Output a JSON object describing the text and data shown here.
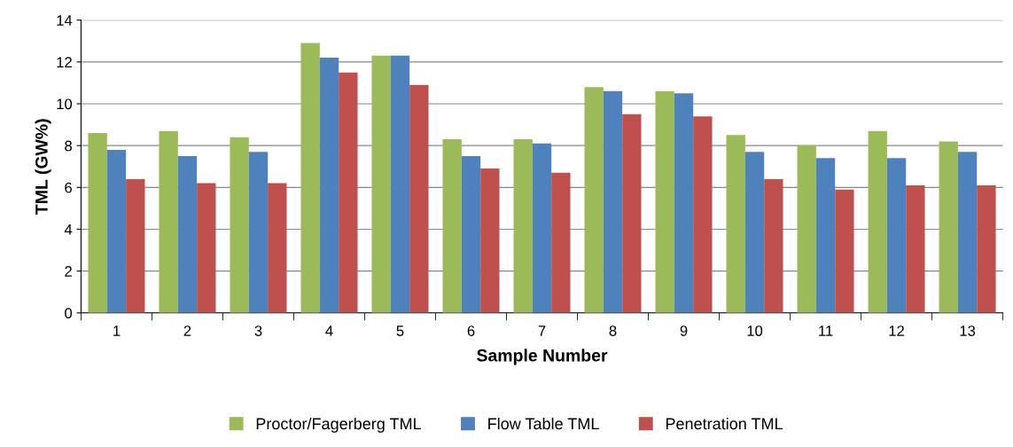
{
  "chart_data": {
    "type": "bar",
    "xlabel": "Sample Number",
    "ylabel": "TML (GW%)",
    "categories": [
      "1",
      "2",
      "3",
      "4",
      "5",
      "6",
      "7",
      "8",
      "9",
      "10",
      "11",
      "12",
      "13"
    ],
    "series": [
      {
        "name": "Proctor/Fagerberg TML",
        "color": "#9bbb59",
        "values": [
          8.6,
          8.7,
          8.4,
          12.9,
          12.3,
          8.3,
          8.3,
          10.8,
          10.6,
          8.5,
          8.0,
          8.7,
          8.2
        ]
      },
      {
        "name": "Flow Table TML",
        "color": "#4f81bd",
        "values": [
          7.8,
          7.5,
          7.7,
          12.2,
          12.3,
          7.5,
          8.1,
          10.6,
          10.5,
          7.7,
          7.4,
          7.4,
          7.7
        ]
      },
      {
        "name": "Penetration TML",
        "color": "#c0504d",
        "values": [
          6.4,
          6.2,
          6.2,
          11.5,
          10.9,
          6.9,
          6.7,
          9.5,
          9.4,
          6.4,
          5.9,
          6.1,
          6.1
        ]
      }
    ],
    "ylim": [
      0,
      14
    ],
    "yticks": [
      0,
      2,
      4,
      6,
      8,
      10,
      12,
      14
    ],
    "grid": "y",
    "legend": "bottom"
  }
}
